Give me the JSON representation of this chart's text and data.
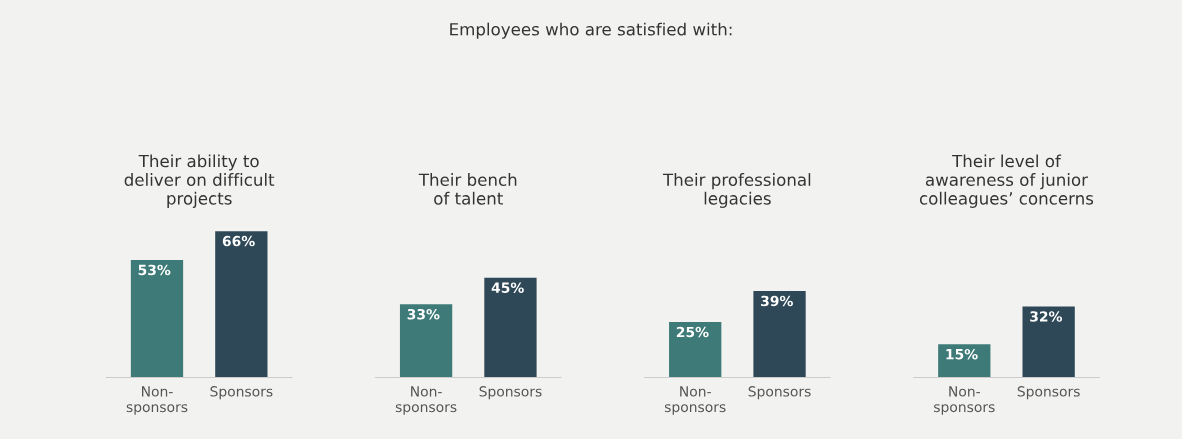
{
  "chart_data": [
    {
      "type": "bar",
      "title": "Their ability to\ndeliver on difficult\nprojects",
      "annotations": [
        "Employees who are satisfied with:"
      ],
      "categories": [
        "Non-\nsponsors",
        "Sponsors"
      ],
      "values": [
        53,
        66
      ],
      "colors": [
        "#3e7b78",
        "#2f4858"
      ],
      "value_labels": [
        "53%",
        "66%"
      ]
    },
    {
      "type": "bar",
      "title": "Their bench\nof talent",
      "categories": [
        "Non-\nsponsors",
        "Sponsors"
      ],
      "values": [
        33,
        45
      ],
      "colors": [
        "#3e7b78",
        "#2f4858"
      ],
      "value_labels": [
        "33%",
        "45%"
      ]
    },
    {
      "type": "bar",
      "title": "Their professional\nlegacies",
      "categories": [
        "Non-\nsponsors",
        "Sponsors"
      ],
      "values": [
        25,
        39
      ],
      "colors": [
        "#3e7b78",
        "#2f4858"
      ],
      "value_labels": [
        "25%",
        "39%"
      ]
    },
    {
      "type": "bar",
      "title": "Their level of\nawareness of junior\ncolleagues’ concerns",
      "categories": [
        "Non-\nsponsors",
        "Sponsors"
      ],
      "values": [
        15,
        32
      ],
      "colors": [
        "#3e7b78",
        "#2f4858"
      ],
      "value_labels": [
        "15%",
        "32%"
      ]
    }
  ]
}
